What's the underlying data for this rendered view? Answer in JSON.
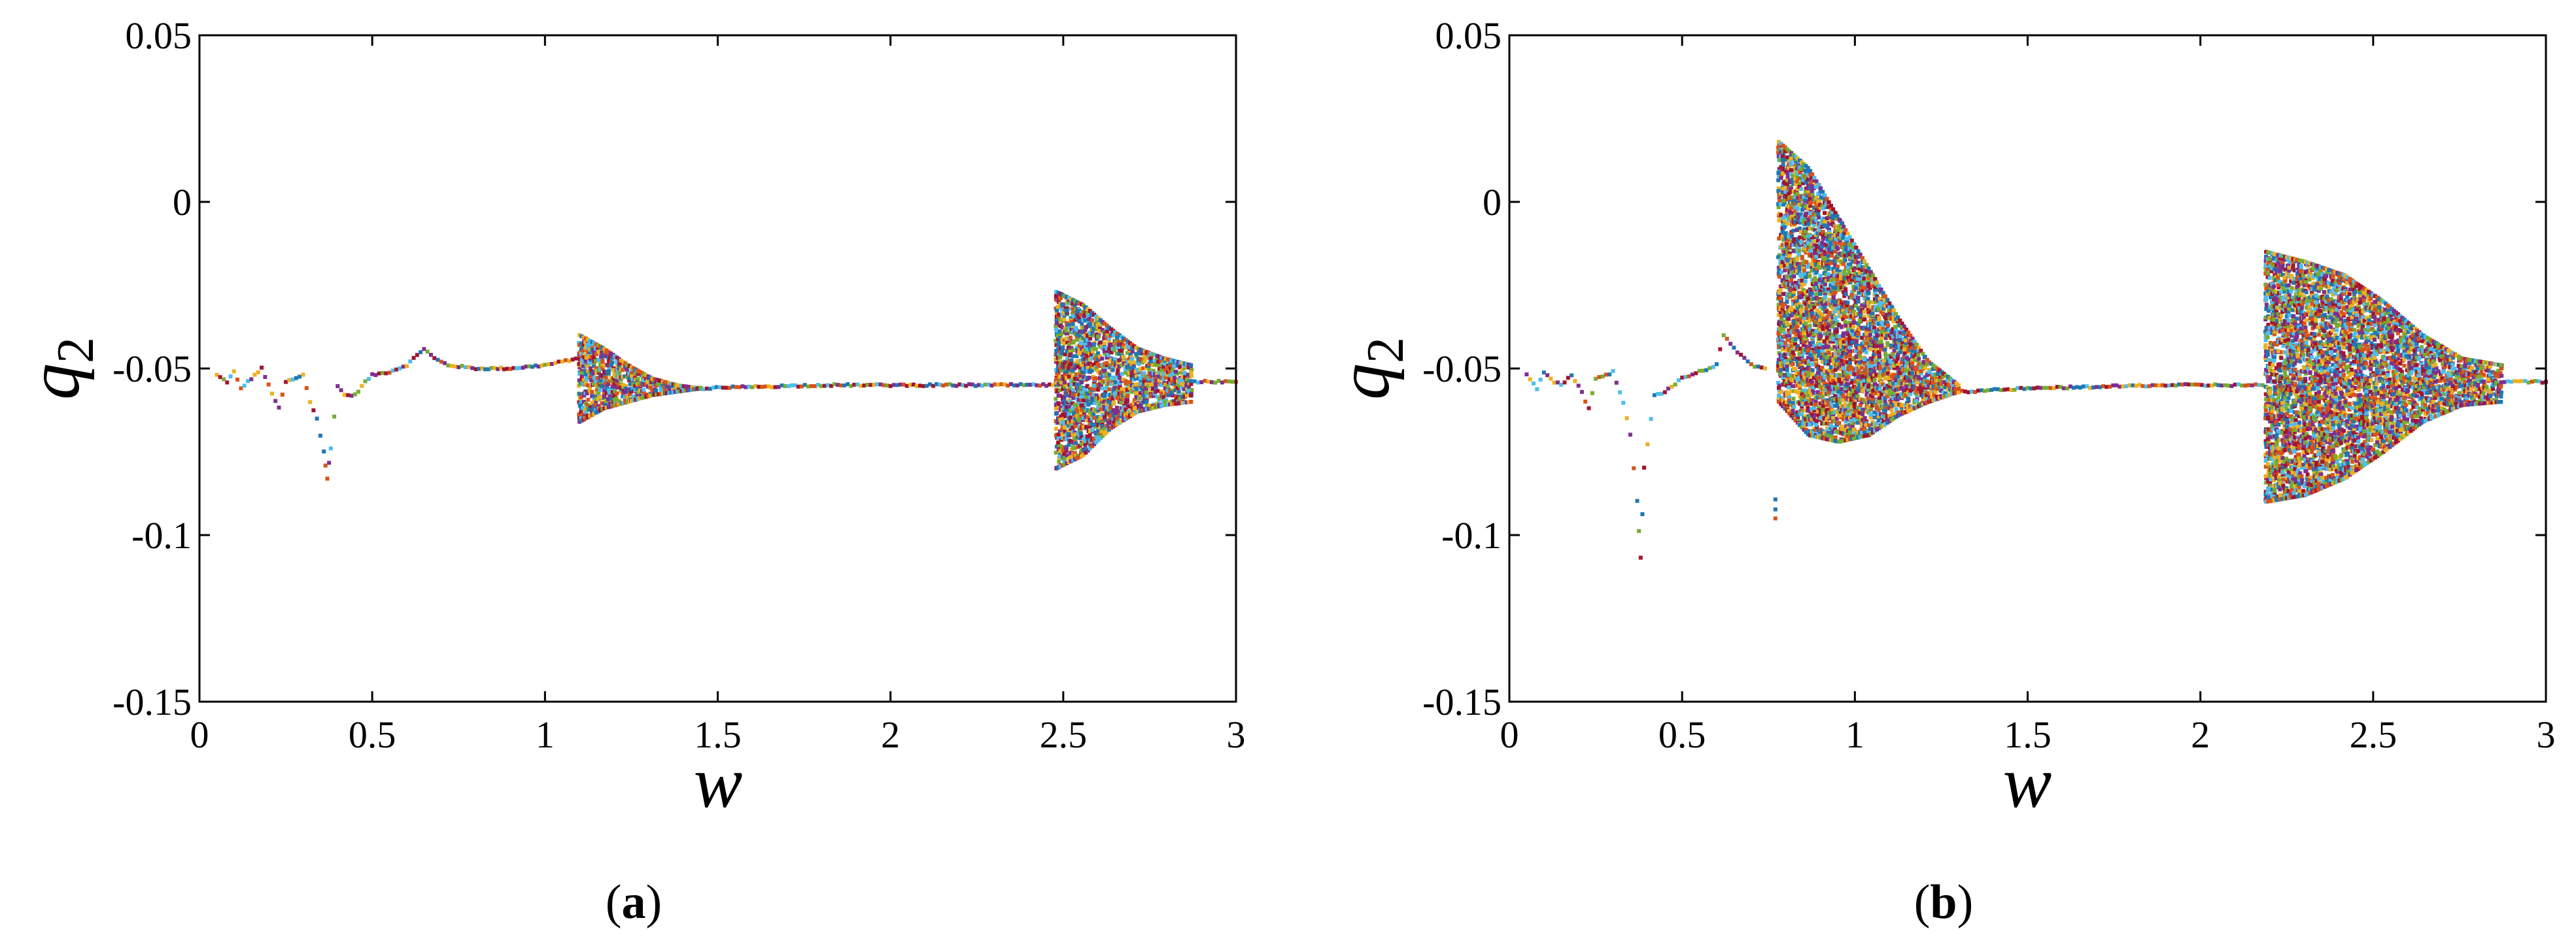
{
  "chart_data": [
    {
      "type": "scatter",
      "panel_label": "a",
      "xlabel": "w",
      "ylabel": "q",
      "ylabel_subscript": "2",
      "xlim": [
        0,
        3
      ],
      "ylim": [
        -0.15,
        0.05
      ],
      "xticks": [
        "0",
        "0.5",
        "1",
        "1.5",
        "2",
        "2.5",
        "3"
      ],
      "yticks": [
        "0.05",
        "0",
        "-0.05",
        "-0.1",
        "-0.15"
      ],
      "grid": false,
      "legend": "none",
      "marker_palette": [
        "#1f77b4",
        "#d95319",
        "#edb120",
        "#7e2f8e",
        "#77ac30",
        "#4dbeee",
        "#a2142f"
      ],
      "series": [
        {
          "segment": "low-frequency branch",
          "points": [
            [
              0.05,
              -0.052
            ],
            [
              0.08,
              -0.054
            ],
            [
              0.1,
              -0.051
            ],
            [
              0.12,
              -0.056
            ],
            [
              0.15,
              -0.053
            ],
            [
              0.18,
              -0.05
            ],
            [
              0.2,
              -0.055
            ],
            [
              0.23,
              -0.062
            ],
            [
              0.25,
              -0.054
            ],
            [
              0.28,
              -0.053
            ],
            [
              0.3,
              -0.052
            ],
            [
              0.32,
              -0.06
            ],
            [
              0.34,
              -0.065
            ],
            [
              0.36,
              -0.075
            ],
            [
              0.37,
              -0.083
            ],
            [
              0.38,
              -0.074
            ],
            [
              0.4,
              -0.055
            ],
            [
              0.42,
              -0.058
            ],
            [
              0.45,
              -0.058
            ],
            [
              0.48,
              -0.054
            ],
            [
              0.5,
              -0.052
            ],
            [
              0.55,
              -0.051
            ],
            [
              0.6,
              -0.049
            ],
            [
              0.63,
              -0.046
            ],
            [
              0.65,
              -0.044
            ],
            [
              0.68,
              -0.047
            ],
            [
              0.72,
              -0.049
            ],
            [
              0.8,
              -0.05
            ],
            [
              0.9,
              -0.05
            ],
            [
              1.0,
              -0.049
            ],
            [
              1.05,
              -0.048
            ],
            [
              1.09,
              -0.047
            ]
          ]
        },
        {
          "segment": "first chaotic band",
          "w_range": [
            1.1,
            1.45
          ],
          "q2_upper": [
            -0.04,
            -0.044,
            -0.049,
            -0.053,
            -0.055,
            -0.056
          ],
          "q2_lower": [
            -0.066,
            -0.062,
            -0.06,
            -0.058,
            -0.057,
            -0.056
          ]
        },
        {
          "segment": "period-1 branch",
          "points": [
            [
              1.45,
              -0.056
            ],
            [
              1.6,
              -0.0555
            ],
            [
              1.8,
              -0.055
            ],
            [
              2.0,
              -0.055
            ],
            [
              2.2,
              -0.055
            ],
            [
              2.47,
              -0.055
            ]
          ]
        },
        {
          "segment": "second chaotic band",
          "w_range": [
            2.48,
            2.87
          ],
          "q2_upper": [
            -0.027,
            -0.031,
            -0.038,
            -0.044,
            -0.047,
            -0.049
          ],
          "q2_lower": [
            -0.08,
            -0.076,
            -0.068,
            -0.063,
            -0.061,
            -0.06
          ]
        },
        {
          "segment": "high-frequency branch",
          "points": [
            [
              2.88,
              -0.054
            ],
            [
              2.92,
              -0.054
            ],
            [
              2.96,
              -0.054
            ],
            [
              3.0,
              -0.054
            ]
          ]
        }
      ]
    },
    {
      "type": "scatter",
      "panel_label": "b",
      "xlabel": "w",
      "ylabel": "q",
      "ylabel_subscript": "2",
      "xlim": [
        0,
        3
      ],
      "ylim": [
        -0.15,
        0.05
      ],
      "xticks": [
        "0",
        "0.5",
        "1",
        "1.5",
        "2",
        "2.5",
        "3"
      ],
      "yticks": [
        "0.05",
        "0",
        "-0.05",
        "-0.1",
        "-0.15"
      ],
      "grid": false,
      "legend": "none",
      "marker_palette": [
        "#1f77b4",
        "#d95319",
        "#edb120",
        "#7e2f8e",
        "#77ac30",
        "#4dbeee",
        "#a2142f"
      ],
      "series": [
        {
          "segment": "low-frequency branch",
          "points": [
            [
              0.05,
              -0.052
            ],
            [
              0.08,
              -0.056
            ],
            [
              0.1,
              -0.051
            ],
            [
              0.13,
              -0.054
            ],
            [
              0.15,
              -0.055
            ],
            [
              0.18,
              -0.052
            ],
            [
              0.2,
              -0.055
            ],
            [
              0.23,
              -0.062
            ],
            [
              0.25,
              -0.053
            ],
            [
              0.28,
              -0.052
            ],
            [
              0.3,
              -0.051
            ],
            [
              0.33,
              -0.06
            ],
            [
              0.35,
              -0.07
            ],
            [
              0.37,
              -0.09
            ],
            [
              0.38,
              -0.107
            ],
            [
              0.39,
              -0.08
            ],
            [
              0.42,
              -0.058
            ],
            [
              0.45,
              -0.057
            ],
            [
              0.5,
              -0.053
            ],
            [
              0.55,
              -0.051
            ],
            [
              0.6,
              -0.049
            ],
            [
              0.62,
              -0.04
            ],
            [
              0.65,
              -0.044
            ],
            [
              0.7,
              -0.049
            ],
            [
              0.74,
              -0.05
            ]
          ]
        },
        {
          "segment": "isolated drop",
          "points": [
            [
              0.77,
              -0.089
            ],
            [
              0.77,
              -0.095
            ]
          ]
        },
        {
          "segment": "first chaotic band",
          "w_range": [
            0.78,
            1.3
          ],
          "q2_upper": [
            0.018,
            0.01,
            -0.005,
            -0.02,
            -0.035,
            -0.048,
            -0.055
          ],
          "q2_lower": [
            -0.06,
            -0.07,
            -0.072,
            -0.07,
            -0.064,
            -0.06,
            -0.057
          ]
        },
        {
          "segment": "period-1 branch",
          "points": [
            [
              1.3,
              -0.057
            ],
            [
              1.5,
              -0.056
            ],
            [
              1.7,
              -0.0555
            ],
            [
              1.9,
              -0.055
            ],
            [
              2.1,
              -0.055
            ],
            [
              2.18,
              -0.055
            ]
          ]
        },
        {
          "segment": "second chaotic band",
          "w_range": [
            2.19,
            2.87
          ],
          "q2_upper": [
            -0.015,
            -0.018,
            -0.022,
            -0.03,
            -0.04,
            -0.047,
            -0.049
          ],
          "q2_lower": [
            -0.09,
            -0.088,
            -0.083,
            -0.075,
            -0.066,
            -0.061,
            -0.06
          ]
        },
        {
          "segment": "high-frequency branch",
          "points": [
            [
              2.88,
              -0.054
            ],
            [
              2.92,
              -0.054
            ],
            [
              2.96,
              -0.054
            ],
            [
              3.0,
              -0.054
            ]
          ]
        }
      ]
    }
  ]
}
